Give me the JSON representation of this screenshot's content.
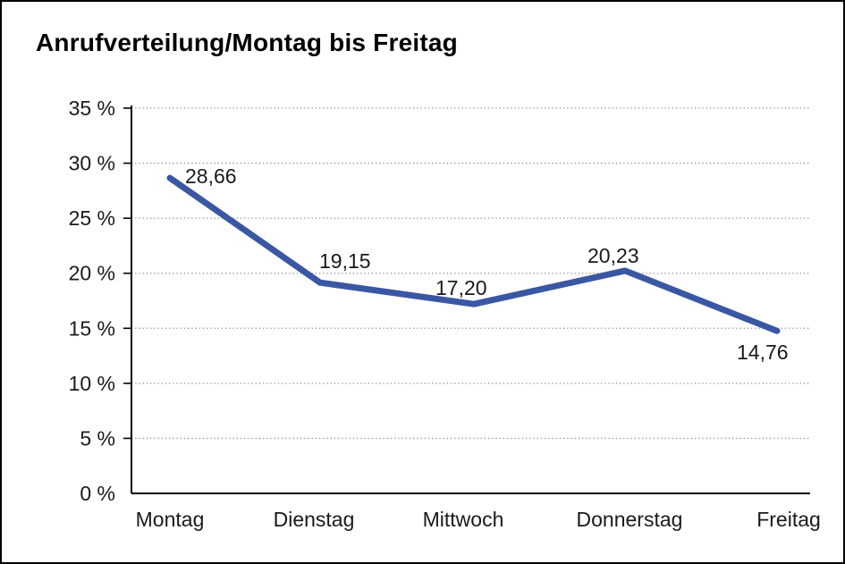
{
  "chart_data": {
    "type": "line",
    "title": "Anrufverteilung/Montag bis Freitag",
    "categories": [
      "Montag",
      "Dienstag",
      "Mittwoch",
      "Donnerstag",
      "Freitag"
    ],
    "series": [
      {
        "name": "Anrufverteilung",
        "values": [
          28.66,
          19.15,
          17.2,
          20.23,
          14.76
        ]
      }
    ],
    "point_labels": [
      "28,66",
      "19,15",
      "17,20",
      "20,23",
      "14,76"
    ],
    "y_ticks": [
      "0 %",
      "5 %",
      "10 %",
      "15 %",
      "20 %",
      "25 %",
      "30 %",
      "35 %"
    ],
    "ylim": [
      0,
      35
    ],
    "y_step": 5,
    "xlabel": "",
    "ylabel": "",
    "legend": "none",
    "grid": "horizontal-dotted",
    "line_color": "#3a57a4",
    "axis_color": "#000000",
    "grid_color": "#8f8f8f",
    "text_color": "#1a1a1a"
  }
}
